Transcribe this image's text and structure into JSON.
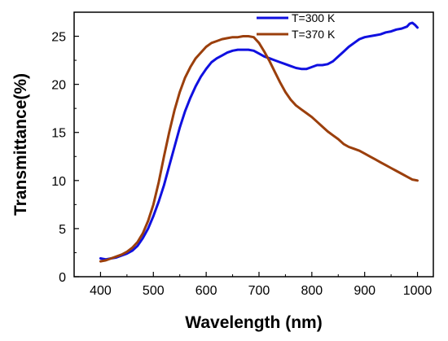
{
  "chart_data": {
    "type": "line",
    "xlabel": "Wavelength (nm)",
    "ylabel": "Transmittance(%)",
    "xlim": [
      350,
      1030
    ],
    "ylim": [
      0,
      27.5
    ],
    "xticks": [
      400,
      500,
      600,
      700,
      800,
      900,
      1000
    ],
    "yticks": [
      0,
      5,
      10,
      15,
      20,
      25
    ],
    "grid": false,
    "legend_position": "top-right",
    "series": [
      {
        "name": "T=300 K",
        "color": "#1010e0",
        "x": [
          400,
          410,
          420,
          430,
          440,
          450,
          460,
          470,
          480,
          490,
          500,
          510,
          520,
          530,
          540,
          550,
          560,
          570,
          580,
          590,
          600,
          610,
          620,
          630,
          640,
          650,
          660,
          670,
          680,
          690,
          700,
          710,
          720,
          730,
          740,
          750,
          760,
          770,
          780,
          790,
          800,
          810,
          820,
          830,
          840,
          850,
          860,
          870,
          880,
          890,
          900,
          910,
          920,
          930,
          940,
          950,
          960,
          970,
          980,
          985,
          990,
          995,
          1000
        ],
        "y": [
          1.9,
          1.8,
          1.9,
          2.0,
          2.2,
          2.4,
          2.7,
          3.2,
          4.0,
          5.0,
          6.3,
          7.8,
          9.5,
          11.5,
          13.5,
          15.5,
          17.2,
          18.6,
          19.8,
          20.8,
          21.6,
          22.3,
          22.7,
          23.0,
          23.3,
          23.5,
          23.6,
          23.6,
          23.6,
          23.5,
          23.2,
          22.9,
          22.7,
          22.5,
          22.3,
          22.1,
          21.9,
          21.7,
          21.6,
          21.6,
          21.8,
          22.0,
          22.0,
          22.1,
          22.4,
          22.9,
          23.4,
          23.9,
          24.3,
          24.7,
          24.9,
          25.0,
          25.1,
          25.2,
          25.4,
          25.5,
          25.7,
          25.8,
          26.0,
          26.3,
          26.4,
          26.2,
          25.9
        ]
      },
      {
        "name": "T=370 K",
        "color": "#9b3f0c",
        "x": [
          400,
          410,
          420,
          430,
          440,
          450,
          460,
          470,
          480,
          490,
          500,
          510,
          520,
          530,
          540,
          550,
          560,
          570,
          580,
          590,
          600,
          610,
          620,
          630,
          640,
          650,
          660,
          670,
          680,
          690,
          700,
          710,
          720,
          730,
          740,
          750,
          760,
          770,
          780,
          790,
          800,
          810,
          820,
          830,
          840,
          850,
          860,
          870,
          880,
          890,
          900,
          910,
          920,
          930,
          940,
          950,
          960,
          970,
          980,
          990,
          1000
        ],
        "y": [
          1.6,
          1.7,
          1.9,
          2.1,
          2.3,
          2.6,
          3.0,
          3.6,
          4.5,
          5.8,
          7.5,
          9.8,
          12.5,
          15.0,
          17.3,
          19.2,
          20.7,
          21.8,
          22.7,
          23.3,
          23.9,
          24.3,
          24.5,
          24.7,
          24.8,
          24.9,
          24.9,
          25.0,
          25.0,
          24.9,
          24.3,
          23.4,
          22.4,
          21.3,
          20.2,
          19.2,
          18.4,
          17.8,
          17.4,
          17.0,
          16.6,
          16.1,
          15.6,
          15.1,
          14.7,
          14.3,
          13.8,
          13.5,
          13.3,
          13.1,
          12.8,
          12.5,
          12.2,
          11.9,
          11.6,
          11.3,
          11.0,
          10.7,
          10.4,
          10.1,
          10.0
        ]
      }
    ]
  }
}
